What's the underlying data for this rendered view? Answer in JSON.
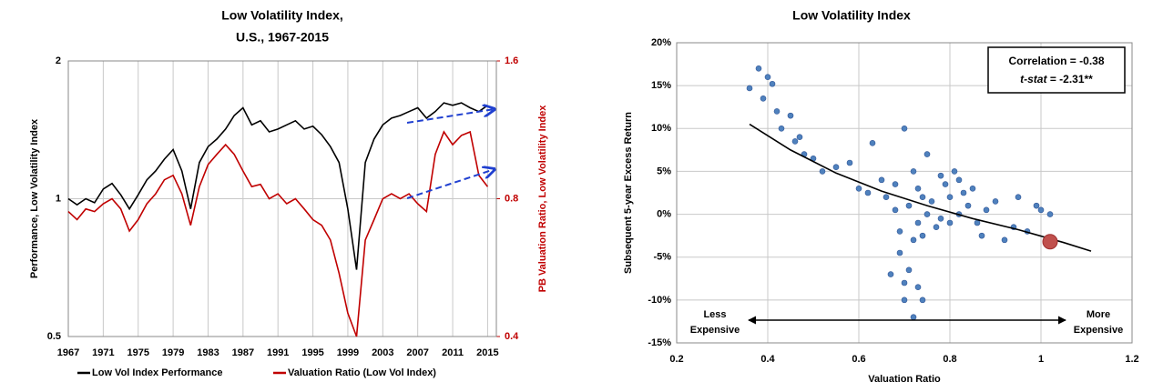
{
  "chart_data": [
    {
      "type": "line",
      "title": [
        "Low Volatility Index,",
        "U.S., 1967-2015"
      ],
      "ylabel": "Performance, Low Volatility Index",
      "y2label": "PB Valuation Ratio, Low Volatility Index",
      "log_scale": true,
      "grid": true,
      "legend": "bottom",
      "x": [
        1967,
        1968,
        1969,
        1970,
        1971,
        1972,
        1973,
        1974,
        1975,
        1976,
        1977,
        1978,
        1979,
        1980,
        1981,
        1982,
        1983,
        1984,
        1985,
        1986,
        1987,
        1988,
        1989,
        1990,
        1991,
        1992,
        1993,
        1994,
        1995,
        1996,
        1997,
        1998,
        1999,
        2000,
        2001,
        2002,
        2003,
        2004,
        2005,
        2006,
        2007,
        2008,
        2009,
        2010,
        2011,
        2012,
        2013,
        2014,
        2015
      ],
      "xlim": [
        1967,
        2016
      ],
      "xticks": [
        1967,
        1971,
        1975,
        1979,
        1983,
        1987,
        1991,
        1995,
        1999,
        2003,
        2007,
        2011,
        2015
      ],
      "ylim": [
        0.5,
        2
      ],
      "yticks": [
        0.5,
        1,
        2
      ],
      "y2lim": [
        0.4,
        1.6
      ],
      "y2ticks": [
        0.4,
        0.8,
        1.6
      ],
      "y2color": "#c00000",
      "series": [
        {
          "name": "Low Vol Index Performance",
          "color": "#000000",
          "values": [
            1.0,
            0.97,
            1.0,
            0.98,
            1.05,
            1.08,
            1.02,
            0.95,
            1.02,
            1.1,
            1.15,
            1.22,
            1.28,
            1.15,
            0.95,
            1.2,
            1.3,
            1.35,
            1.42,
            1.52,
            1.58,
            1.45,
            1.48,
            1.4,
            1.42,
            1.45,
            1.48,
            1.42,
            1.44,
            1.38,
            1.3,
            1.2,
            0.95,
            0.7,
            1.2,
            1.35,
            1.45,
            1.5,
            1.52,
            1.55,
            1.58,
            1.5,
            1.55,
            1.62,
            1.6,
            1.62,
            1.58,
            1.55,
            1.6
          ]
        },
        {
          "name": "Valuation Ratio (Low Vol Index)",
          "color": "#c00000",
          "axis": "y2",
          "values": [
            0.75,
            0.72,
            0.76,
            0.75,
            0.78,
            0.8,
            0.76,
            0.68,
            0.72,
            0.78,
            0.82,
            0.88,
            0.9,
            0.82,
            0.7,
            0.85,
            0.95,
            1.0,
            1.05,
            1.0,
            0.92,
            0.85,
            0.86,
            0.8,
            0.82,
            0.78,
            0.8,
            0.76,
            0.72,
            0.7,
            0.65,
            0.55,
            0.45,
            0.4,
            0.65,
            0.72,
            0.8,
            0.82,
            0.8,
            0.82,
            0.78,
            0.75,
            1.0,
            1.12,
            1.05,
            1.1,
            1.12,
            0.9,
            0.85
          ]
        }
      ]
    },
    {
      "type": "scatter",
      "title": "Low Volatility Index",
      "xlabel": "Valuation Ratio",
      "ylabel": "Subsequent 5-year Excess Return",
      "grid": true,
      "color": "#4f81bd",
      "xlim": [
        0.2,
        1.2
      ],
      "xticks": [
        0.2,
        0.4,
        0.6,
        0.8,
        1,
        1.2
      ],
      "ylim": [
        -15,
        20
      ],
      "yticks": [
        {
          "value": -15,
          "label": "-15%"
        },
        {
          "value": -10,
          "label": "-10%"
        },
        {
          "value": -5,
          "label": "-5%"
        },
        {
          "value": 0,
          "label": "0%"
        },
        {
          "value": 5,
          "label": "5%"
        },
        {
          "value": 10,
          "label": "10%"
        },
        {
          "value": 15,
          "label": "15%"
        },
        {
          "value": 20,
          "label": "20%"
        }
      ],
      "x": [
        0.36,
        0.38,
        0.39,
        0.4,
        0.41,
        0.42,
        0.43,
        0.45,
        0.46,
        0.47,
        0.48,
        0.5,
        0.52,
        0.55,
        0.58,
        0.6,
        0.62,
        0.63,
        0.65,
        0.66,
        0.67,
        0.68,
        0.68,
        0.69,
        0.7,
        0.7,
        0.71,
        0.72,
        0.72,
        0.73,
        0.73,
        0.74,
        0.74,
        0.75,
        0.75,
        0.76,
        0.77,
        0.78,
        0.78,
        0.79,
        0.8,
        0.8,
        0.81,
        0.82,
        0.82,
        0.83,
        0.84,
        0.85,
        0.86,
        0.87,
        0.88,
        0.9,
        0.92,
        0.94,
        0.95,
        0.97,
        0.99,
        1.0,
        1.02,
        0.7,
        0.72,
        0.74,
        0.71,
        0.69,
        0.73
      ],
      "values": [
        14.7,
        17.0,
        13.5,
        16.0,
        15.2,
        12.0,
        10.0,
        11.5,
        8.5,
        9.0,
        7.0,
        6.5,
        5.0,
        5.5,
        6.0,
        3.0,
        2.5,
        8.3,
        4.0,
        2.0,
        -7.0,
        0.5,
        3.5,
        -2.0,
        -8.0,
        10.0,
        1.0,
        5.0,
        -3.0,
        -1.0,
        3.0,
        2.0,
        -2.5,
        0.0,
        7.0,
        1.5,
        -1.5,
        4.5,
        -0.5,
        3.5,
        2.0,
        -1.0,
        5.0,
        4.0,
        0.0,
        2.5,
        1.0,
        3.0,
        -1.0,
        -2.5,
        0.5,
        1.5,
        -3.0,
        -1.5,
        2.0,
        -2.0,
        1.0,
        0.5,
        0.0,
        -10.0,
        -12.0,
        -10.0,
        -6.5,
        -4.5,
        -8.5
      ],
      "fit": {
        "color": "#000000",
        "x": [
          0.36,
          0.45,
          0.55,
          0.65,
          0.75,
          0.85,
          0.95,
          1.05,
          1.11
        ],
        "values": [
          10.5,
          7.5,
          4.8,
          2.7,
          1.0,
          -0.5,
          -1.8,
          -3.3,
          -4.3
        ]
      },
      "highlight": {
        "color": "#c0504d",
        "x": 1.02,
        "value": -3.2
      },
      "correlation": "Correlation =  -0.38",
      "stat_label": "t-stat",
      "stat_value": " = -2.31**",
      "left_note": [
        "Less",
        "Expensive"
      ],
      "right_note": [
        "More",
        "Expensive"
      ]
    }
  ]
}
